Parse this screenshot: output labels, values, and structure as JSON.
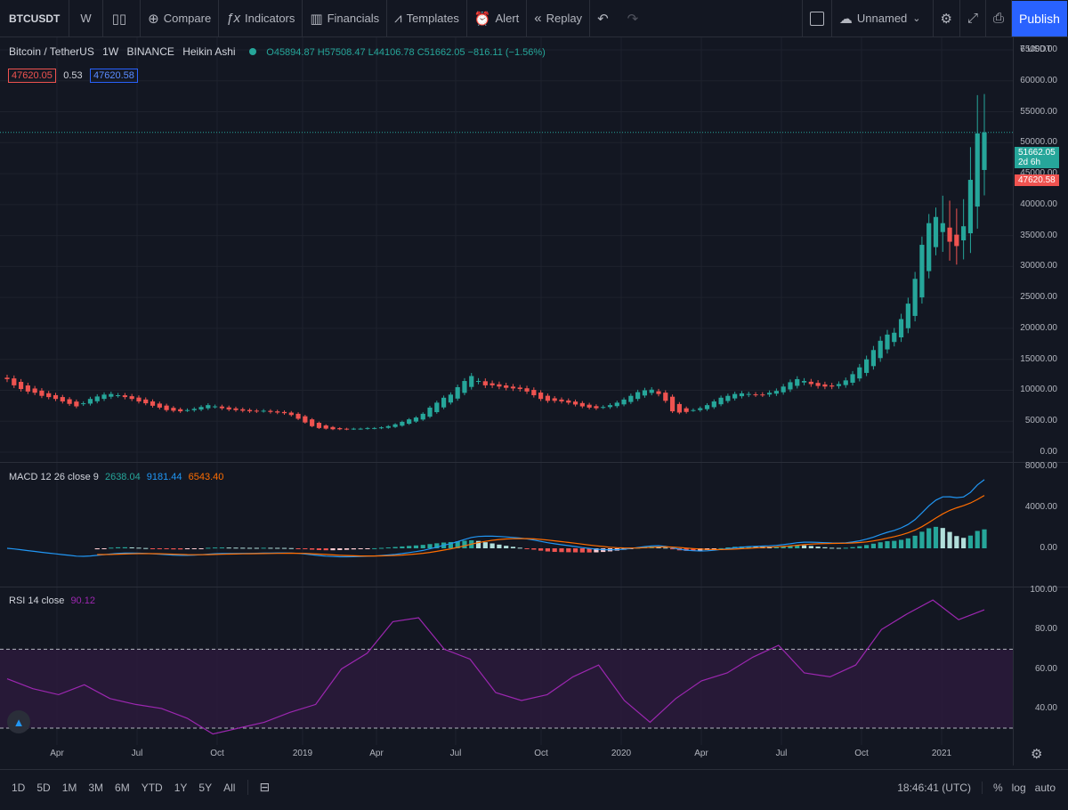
{
  "toolbar": {
    "symbol": "BTCUSDT",
    "interval": "W",
    "compare": "Compare",
    "indicators": "Indicators",
    "financials": "Financials",
    "templates": "Templates",
    "alert": "Alert",
    "replay": "Replay",
    "layout_name": "Unnamed",
    "publish": "Publish"
  },
  "legend": {
    "title": "Bitcoin / TetherUS",
    "interval": "1W",
    "exchange": "BINANCE",
    "style": "Heikin Ashi",
    "ohlc": "O45894.87 H57508.47 L44106.78 C51662.05 −816.11 (−1.56%)",
    "bid": "47620.05",
    "spread": "0.53",
    "ask": "47620.58"
  },
  "price_axis": {
    "header": "7 USDT",
    "ticks": [
      "65000.00",
      "60000.00",
      "55000.00",
      "50000.00",
      "45000.00",
      "40000.00",
      "35000.00",
      "30000.00",
      "25000.00",
      "20000.00",
      "15000.00",
      "10000.00",
      "5000.00",
      "0.00"
    ],
    "last_price": "51662.05",
    "countdown": "2d 6h",
    "bid_tag": "47620.58"
  },
  "macd": {
    "label": "MACD 12 26 close 9",
    "hist": "2638.04",
    "macd": "9181.44",
    "signal": "6543.40",
    "ticks": [
      "8000.00",
      "4000.00",
      "0.00"
    ]
  },
  "rsi": {
    "label": "RSI 14 close",
    "value": "90.12",
    "ticks": [
      "100.00",
      "80.00",
      "60.00",
      "40.00"
    ]
  },
  "time_axis": {
    "ticks": [
      "Apr",
      "Jul",
      "Oct",
      "2019",
      "Apr",
      "Jul",
      "Oct",
      "2020",
      "Apr",
      "Jul",
      "Oct",
      "2021"
    ]
  },
  "bottom": {
    "timeframes": [
      "1D",
      "5D",
      "1M",
      "3M",
      "6M",
      "YTD",
      "1Y",
      "5Y",
      "All"
    ],
    "clock": "18:46:41 (UTC)",
    "percent": "%",
    "log": "log",
    "auto": "auto"
  },
  "colors": {
    "up": "#26a69a",
    "down": "#ef5350",
    "macd_line": "#2196f3",
    "signal_line": "#ff6d00",
    "rsi_line": "#9c27b0",
    "accent": "#2962ff"
  },
  "chart_data": {
    "type": "candlestick",
    "style": "Heikin Ashi",
    "x_range": [
      "2018-01",
      "2021-03"
    ],
    "ylim": [
      0,
      65000
    ],
    "y_ticks": [
      0,
      5000,
      10000,
      15000,
      20000,
      25000,
      30000,
      35000,
      40000,
      45000,
      50000,
      55000,
      60000,
      65000
    ],
    "grid": true,
    "candles_close": [
      11800,
      10800,
      10200,
      9800,
      9600,
      9100,
      8900,
      8600,
      8200,
      7800,
      7400,
      7900,
      8600,
      9000,
      9300,
      9400,
      9200,
      8900,
      8600,
      8200,
      7900,
      7500,
      7200,
      6800,
      6700,
      6600,
      6800,
      7000,
      7300,
      7600,
      7400,
      7100,
      6900,
      6800,
      6700,
      6600,
      6600,
      6700,
      6500,
      6400,
      6300,
      6000,
      5400,
      4800,
      4200,
      3900,
      3800,
      3700,
      3700,
      3700,
      3800,
      3800,
      3900,
      3900,
      4000,
      4200,
      4500,
      4900,
      5300,
      5600,
      6200,
      7200,
      8000,
      8800,
      9300,
      10500,
      11500,
      12300,
      11500,
      10800,
      10800,
      10600,
      10400,
      10300,
      10200,
      9800,
      9200,
      8600,
      8300,
      8300,
      8200,
      8000,
      7700,
      7400,
      7200,
      7100,
      7300,
      7600,
      8000,
      8500,
      9100,
      9700,
      10000,
      10100,
      9400,
      8300,
      6600,
      6400,
      6500,
      6800,
      7100,
      7600,
      8200,
      8800,
      9100,
      9400,
      9500,
      9400,
      9300,
      9300,
      9600,
      9900,
      10600,
      11300,
      11800,
      11500,
      11000,
      10700,
      10600,
      10600,
      11000,
      11600,
      12600,
      13700,
      15000,
      16500,
      18000,
      19000,
      19300,
      21500,
      24000,
      28000,
      33500,
      37000,
      38000,
      37000,
      34000,
      33300,
      36500,
      44000,
      51500,
      51662
    ],
    "macd": [
      2400,
      0,
      -800,
      1200,
      -400,
      1400,
      700,
      0,
      8200
    ],
    "signal": [
      1200,
      0,
      -500,
      1400,
      -200,
      1000,
      800,
      0,
      6500
    ],
    "rsi_overbought": 70,
    "rsi_oversold": 30,
    "rsi": [
      55,
      50,
      47,
      52,
      45,
      42,
      40,
      35,
      27,
      30,
      33,
      38,
      42,
      60,
      68,
      84,
      86,
      70,
      65,
      48,
      44,
      47,
      56,
      62,
      44,
      33,
      45,
      54,
      58,
      66,
      72,
      58,
      56,
      62,
      80,
      88,
      95,
      85,
      90
    ]
  }
}
